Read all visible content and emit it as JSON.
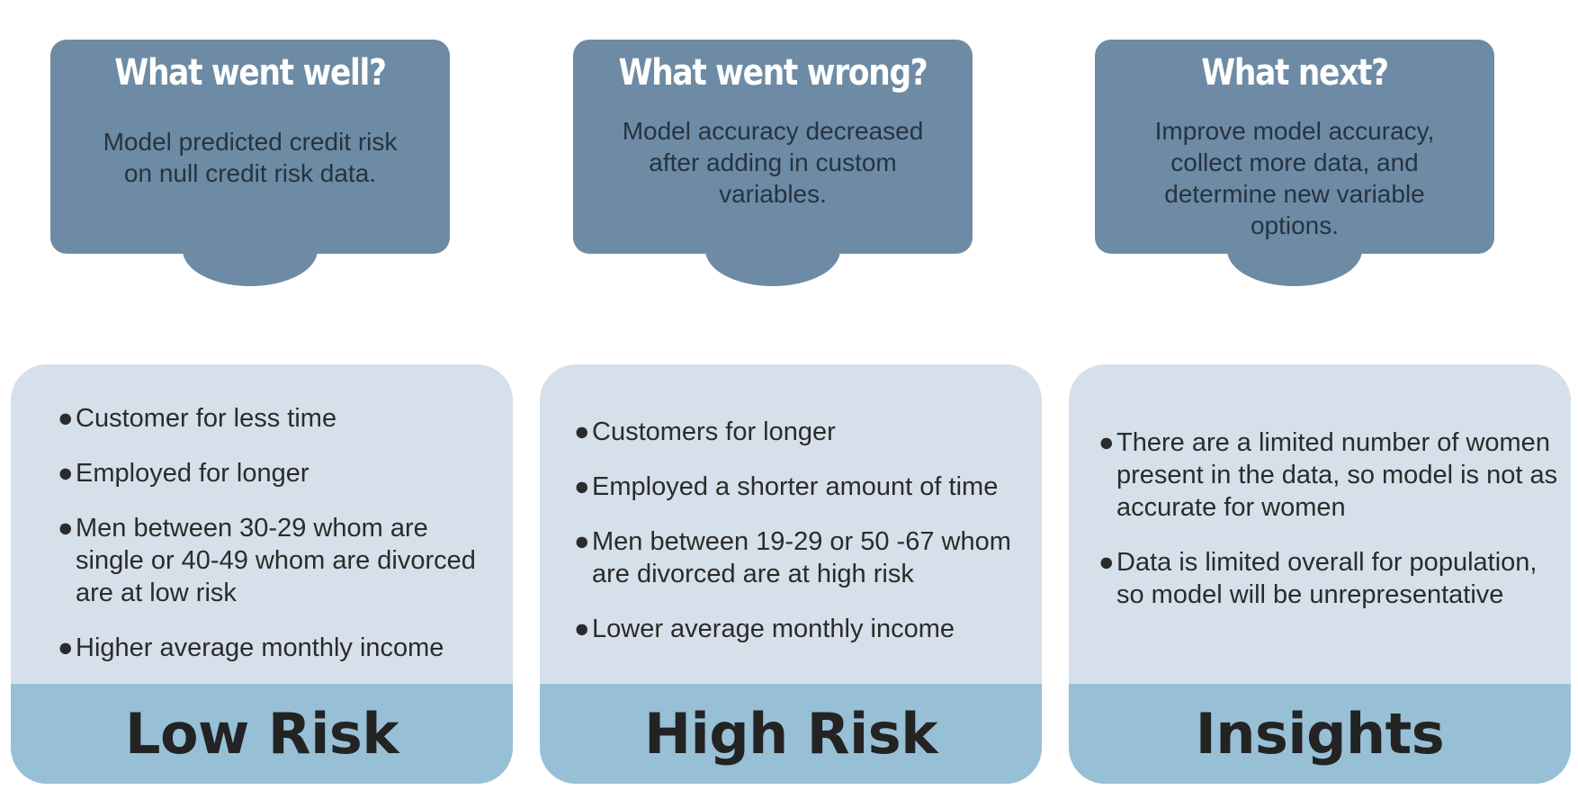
{
  "top_cards": [
    {
      "title": "What went well?",
      "text": "Model predicted credit risk on null credit risk data."
    },
    {
      "title": "What went wrong?",
      "text": "Model accuracy decreased after adding in custom variables."
    },
    {
      "title": "What next?",
      "text": "Improve model accuracy, collect more data, and determine new variable options."
    }
  ],
  "panels": [
    {
      "label": "Low Risk",
      "items": [
        "Customer for less time",
        "Employed for longer",
        " Men between 30-29 whom are single or 40-49 whom are divorced are at low risk",
        "Higher average monthly income"
      ]
    },
    {
      "label": "High Risk",
      "items": [
        "Customers for longer",
        "Employed a shorter amount of time",
        " Men between 19-29 or 50 -67 whom are divorced are at high risk",
        "Lower average monthly income"
      ]
    },
    {
      "label": "Insights",
      "items": [
        "There are a limited number of women present in the data, so model is not as accurate for women",
        "Data is limited overall for population, so model will be unrepresentative"
      ]
    }
  ],
  "bullet_char": "●",
  "colors": {
    "top_card": "#6d8ba4",
    "panel_body": "#d6e0ea",
    "panel_footer": "#97c0d6"
  }
}
